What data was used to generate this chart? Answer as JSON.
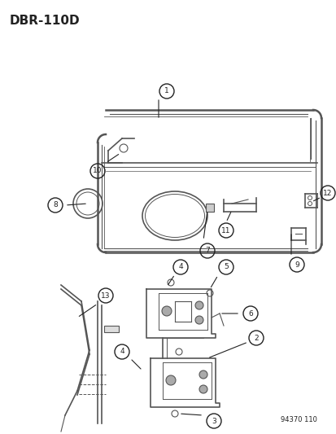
{
  "title": "DBR-110D",
  "footer": "94370 110",
  "bg_color": "#ffffff",
  "fig_width": 4.14,
  "fig_height": 5.33,
  "dpi": 100
}
